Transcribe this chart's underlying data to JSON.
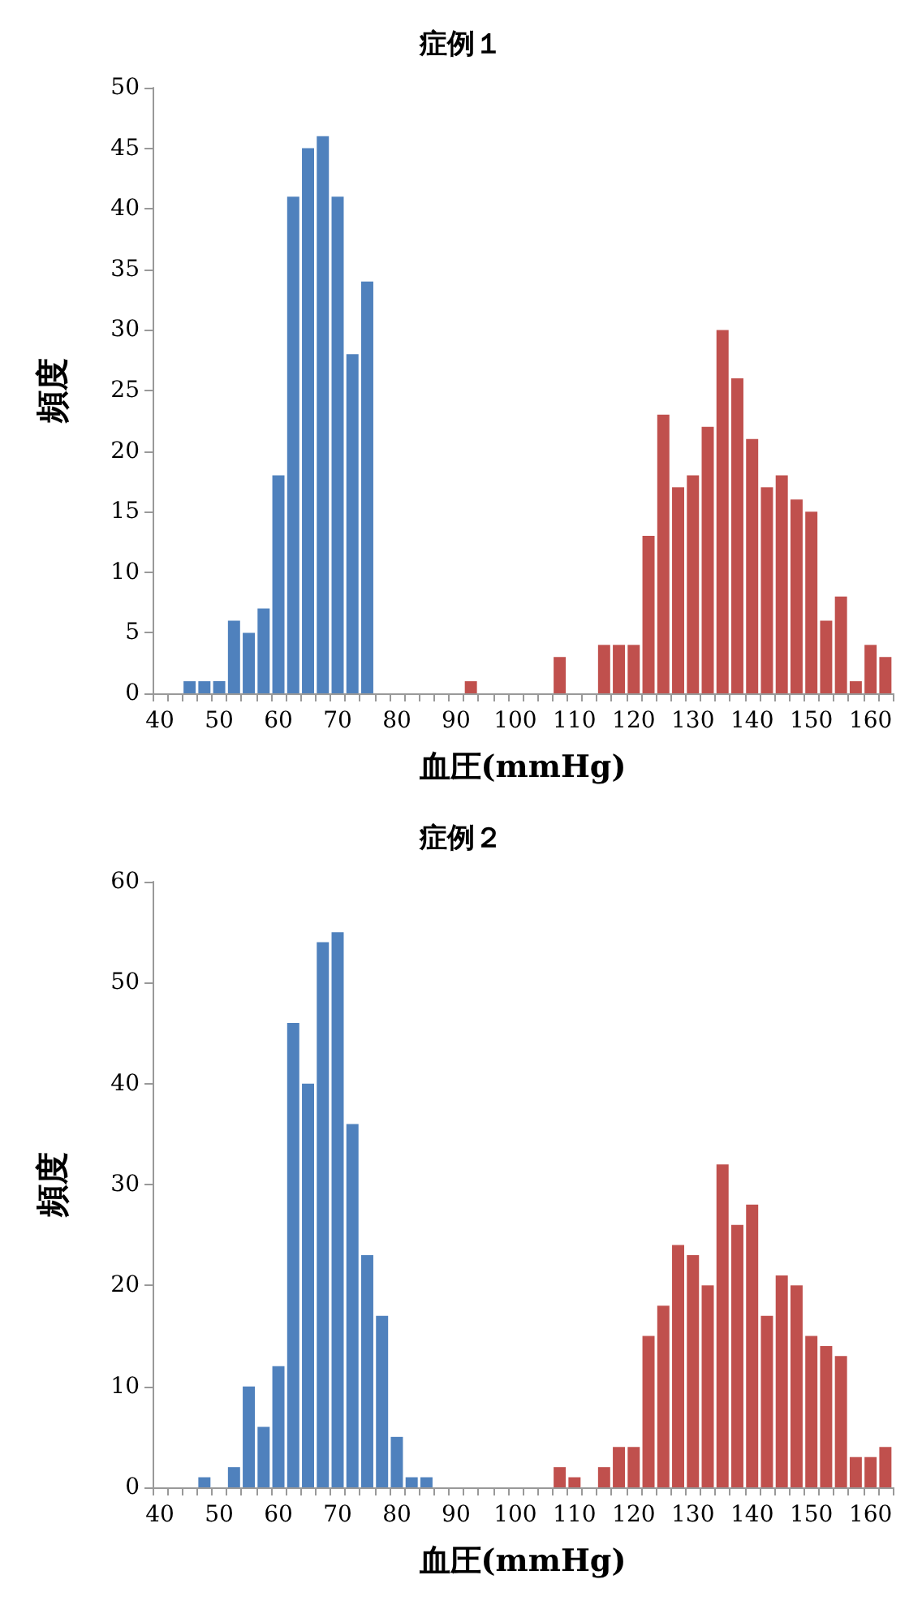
{
  "chart_data": [
    {
      "type": "bar",
      "title": "症例１",
      "xlabel": "血圧(mmHg)",
      "ylabel": "頻度",
      "categories": [
        "40",
        null,
        null,
        null,
        "50",
        null,
        null,
        null,
        "60",
        null,
        null,
        null,
        "70",
        null,
        null,
        null,
        "80",
        null,
        null,
        null,
        "90",
        null,
        null,
        null,
        "100",
        null,
        null,
        null,
        "110",
        null,
        null,
        null,
        "120",
        null,
        null,
        null,
        "130",
        null,
        null,
        null,
        "140",
        null,
        null,
        null,
        "150",
        null,
        null,
        null,
        "160",
        null
      ],
      "values": [
        0,
        0,
        1,
        1,
        1,
        6,
        5,
        7,
        18,
        41,
        45,
        46,
        41,
        28,
        34,
        0,
        0,
        0,
        0,
        0,
        0,
        1,
        0,
        0,
        0,
        0,
        0,
        3,
        0,
        0,
        4,
        4,
        4,
        13,
        23,
        17,
        18,
        22,
        30,
        26,
        21,
        17,
        18,
        16,
        15,
        6,
        8,
        1,
        4,
        3
      ],
      "colors": [
        "#4f81bd",
        "#4f81bd",
        "#4f81bd",
        "#4f81bd",
        "#4f81bd",
        "#4f81bd",
        "#4f81bd",
        "#4f81bd",
        "#4f81bd",
        "#4f81bd",
        "#4f81bd",
        "#4f81bd",
        "#4f81bd",
        "#4f81bd",
        "#4f81bd",
        "#4f81bd",
        "#4f81bd",
        "#4f81bd",
        "#4f81bd",
        "#4f81bd",
        "#c0504d",
        "#c0504d",
        "#c0504d",
        "#c0504d",
        "#c0504d",
        "#c0504d",
        "#c0504d",
        "#c0504d",
        "#c0504d",
        "#c0504d",
        "#c0504d",
        "#c0504d",
        "#c0504d",
        "#c0504d",
        "#c0504d",
        "#c0504d",
        "#c0504d",
        "#c0504d",
        "#c0504d",
        "#c0504d",
        "#c0504d",
        "#c0504d",
        "#c0504d",
        "#c0504d",
        "#c0504d",
        "#c0504d",
        "#c0504d",
        "#c0504d",
        "#c0504d",
        "#c0504d"
      ],
      "ylim": [
        0,
        50
      ],
      "yticks": [
        0,
        5,
        10,
        15,
        20,
        25,
        30,
        35,
        40,
        45,
        50
      ],
      "grid": false
    },
    {
      "type": "bar",
      "title": "症例２",
      "xlabel": "血圧(mmHg)",
      "ylabel": "頻度",
      "categories": [
        "40",
        null,
        null,
        null,
        "50",
        null,
        null,
        null,
        "60",
        null,
        null,
        null,
        "70",
        null,
        null,
        null,
        "80",
        null,
        null,
        null,
        "90",
        null,
        null,
        null,
        "100",
        null,
        null,
        null,
        "110",
        null,
        null,
        null,
        "120",
        null,
        null,
        null,
        "130",
        null,
        null,
        null,
        "140",
        null,
        null,
        null,
        "150",
        null,
        null,
        null,
        "160",
        null
      ],
      "values": [
        0,
        0,
        0,
        1,
        0,
        2,
        10,
        6,
        12,
        46,
        40,
        54,
        55,
        36,
        23,
        17,
        5,
        1,
        1,
        0,
        0,
        0,
        0,
        0,
        0,
        0,
        0,
        2,
        1,
        0,
        2,
        4,
        4,
        15,
        18,
        24,
        23,
        20,
        32,
        26,
        28,
        17,
        21,
        20,
        15,
        14,
        13,
        3,
        3,
        4
      ],
      "colors": [
        "#4f81bd",
        "#4f81bd",
        "#4f81bd",
        "#4f81bd",
        "#4f81bd",
        "#4f81bd",
        "#4f81bd",
        "#4f81bd",
        "#4f81bd",
        "#4f81bd",
        "#4f81bd",
        "#4f81bd",
        "#4f81bd",
        "#4f81bd",
        "#4f81bd",
        "#4f81bd",
        "#4f81bd",
        "#4f81bd",
        "#4f81bd",
        "#4f81bd",
        "#c0504d",
        "#c0504d",
        "#c0504d",
        "#c0504d",
        "#c0504d",
        "#c0504d",
        "#c0504d",
        "#c0504d",
        "#c0504d",
        "#c0504d",
        "#c0504d",
        "#c0504d",
        "#c0504d",
        "#c0504d",
        "#c0504d",
        "#c0504d",
        "#c0504d",
        "#c0504d",
        "#c0504d",
        "#c0504d",
        "#c0504d",
        "#c0504d",
        "#c0504d",
        "#c0504d",
        "#c0504d",
        "#c0504d",
        "#c0504d",
        "#c0504d",
        "#c0504d",
        "#c0504d"
      ],
      "ylim": [
        0,
        60
      ],
      "yticks": [
        0,
        10,
        20,
        30,
        40,
        50,
        60
      ],
      "grid": false
    }
  ]
}
